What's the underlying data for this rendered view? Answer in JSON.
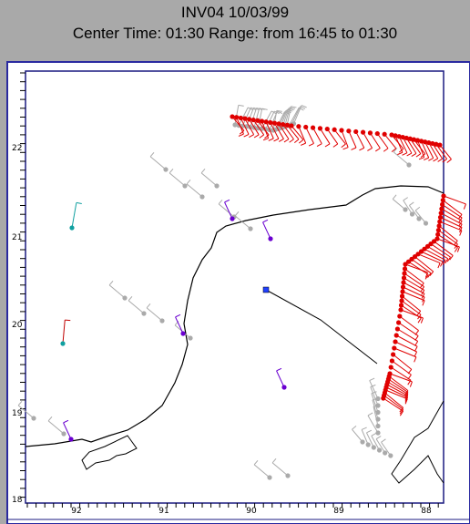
{
  "header": {
    "title": "INV04 10/03/99",
    "subtitle": "Center Time: 01:30  Range: from 16:45 to 01:30"
  },
  "map": {
    "lat_labels": [
      "22",
      "21",
      "20",
      "19",
      "18"
    ],
    "lon_labels": [
      "92",
      "91",
      "90",
      "89",
      "88"
    ]
  }
}
